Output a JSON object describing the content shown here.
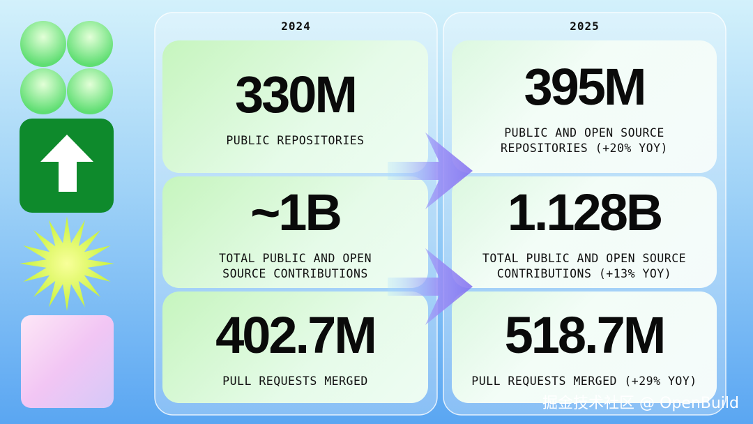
{
  "columns": [
    {
      "year": "2024",
      "cards": [
        {
          "value": "330M",
          "label_lines": [
            "PUBLIC REPOSITORIES"
          ]
        },
        {
          "value": "~1B",
          "label_lines": [
            "TOTAL PUBLIC AND OPEN",
            "SOURCE CONTRIBUTIONS"
          ]
        },
        {
          "value": "402.7M",
          "label_lines": [
            "PULL REQUESTS MERGED"
          ]
        }
      ]
    },
    {
      "year": "2025",
      "cards": [
        {
          "value": "395M",
          "label_lines": [
            "PUBLIC AND OPEN SOURCE",
            "REPOSITORIES (+20% YOY)"
          ]
        },
        {
          "value": "1.128B",
          "label_lines": [
            "TOTAL PUBLIC AND OPEN SOURCE",
            "CONTRIBUTIONS (+13% YOY)"
          ]
        },
        {
          "value": "518.7M",
          "label_lines": [
            "PULL REQUESTS MERGED (+29% YOY)"
          ]
        }
      ]
    }
  ],
  "watermark": "掘金技术社区 @ OpenBuild"
}
